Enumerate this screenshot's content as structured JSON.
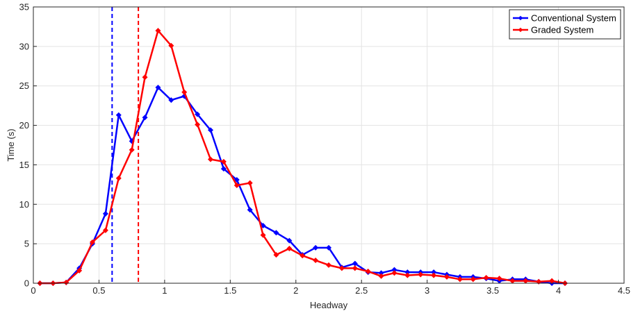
{
  "chart_data": {
    "type": "line",
    "xlabel": "Headway",
    "ylabel": "Time (s)",
    "xlim": [
      0,
      4.5
    ],
    "ylim": [
      0,
      35
    ],
    "xticks": [
      0,
      0.5,
      1,
      1.5,
      2,
      2.5,
      3,
      3.5,
      4,
      4.5
    ],
    "xtick_labels": [
      "0",
      "0.5",
      "1",
      "1.5",
      "2",
      "2.5",
      "3",
      "3.5",
      "4",
      "4.5"
    ],
    "yticks": [
      0,
      5,
      10,
      15,
      20,
      25,
      30,
      35
    ],
    "ytick_labels": [
      "0",
      "5",
      "10",
      "15",
      "20",
      "25",
      "30",
      "35"
    ],
    "grid": true,
    "legend_position": "top-right",
    "x": [
      0.05,
      0.15,
      0.25,
      0.35,
      0.45,
      0.55,
      0.65,
      0.75,
      0.85,
      0.95,
      1.05,
      1.15,
      1.25,
      1.35,
      1.45,
      1.55,
      1.65,
      1.75,
      1.85,
      1.95,
      2.05,
      2.15,
      2.25,
      2.35,
      2.45,
      2.55,
      2.65,
      2.75,
      2.85,
      2.95,
      3.05,
      3.15,
      3.25,
      3.35,
      3.45,
      3.55,
      3.65,
      3.75,
      3.85,
      3.95,
      4.05
    ],
    "series": [
      {
        "name": "Conventional System",
        "color": "#0000ff",
        "values": [
          0,
          0,
          0.1,
          1.9,
          5.0,
          8.8,
          21.3,
          18.0,
          21.0,
          24.8,
          23.2,
          23.7,
          21.4,
          19.4,
          14.5,
          13.1,
          9.3,
          7.3,
          6.4,
          5.4,
          3.6,
          4.5,
          4.5,
          2.0,
          2.5,
          1.4,
          1.3,
          1.7,
          1.4,
          1.4,
          1.4,
          1.1,
          0.8,
          0.8,
          0.6,
          0.3,
          0.5,
          0.5,
          0.2,
          0.0,
          0.0
        ]
      },
      {
        "name": "Graded System",
        "color": "#ff0000",
        "values": [
          0,
          0,
          0.1,
          1.6,
          5.2,
          6.7,
          13.3,
          16.9,
          26.1,
          32.0,
          30.1,
          24.2,
          20.1,
          15.7,
          15.4,
          12.4,
          12.7,
          6.1,
          3.6,
          4.4,
          3.5,
          2.9,
          2.3,
          1.9,
          1.9,
          1.5,
          0.9,
          1.3,
          1.0,
          1.1,
          1.0,
          0.8,
          0.5,
          0.5,
          0.7,
          0.6,
          0.3,
          0.3,
          0.2,
          0.3,
          0.0
        ]
      }
    ],
    "vlines": [
      {
        "x": 0.6,
        "color": "#0000ff",
        "style": "dashed"
      },
      {
        "x": 0.8,
        "color": "#ff0000",
        "style": "dashed"
      }
    ]
  }
}
